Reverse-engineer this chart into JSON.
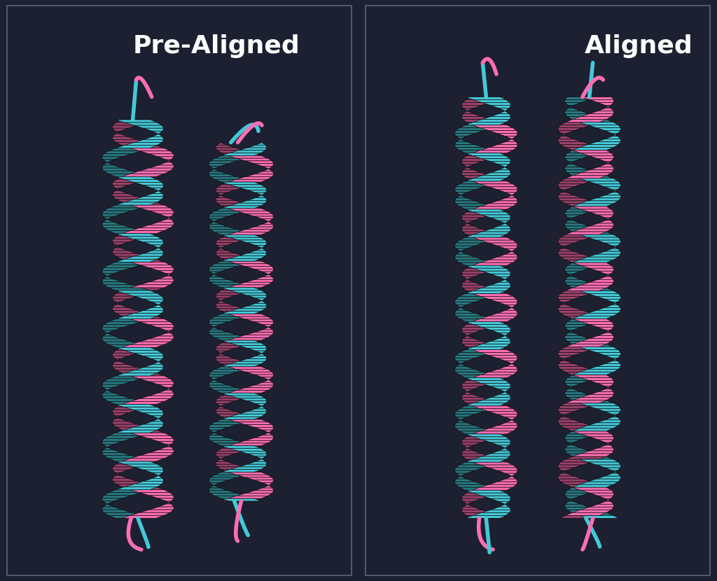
{
  "bg_color": "#1c2030",
  "pink": "#ff6eb4",
  "cyan": "#45c8d8",
  "white": "#ffffff",
  "label_left": "Pre-Aligned",
  "label_right": "Aligned",
  "font_size": 26,
  "fig_w": 10.24,
  "fig_h": 8.3,
  "dpi": 100
}
